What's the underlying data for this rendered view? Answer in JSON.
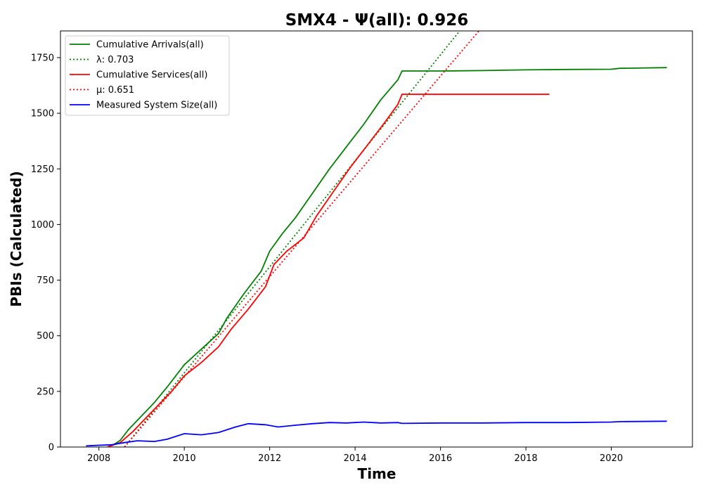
{
  "chart_data": {
    "type": "line",
    "title": "SMX4 -  Ψ(all): 0.926",
    "xlabel": "Time",
    "ylabel": "PBIs (Calculated)",
    "xlim": [
      2007.1,
      2021.9
    ],
    "ylim": [
      0,
      1870
    ],
    "xticks": [
      2008,
      2010,
      2012,
      2014,
      2016,
      2018,
      2020
    ],
    "yticks": [
      0,
      250,
      500,
      750,
      1000,
      1250,
      1500,
      1750
    ],
    "grid": false,
    "legend_position": "top-left",
    "series": [
      {
        "name": "Cumulative Arrivals(all)",
        "color": "#008000",
        "style": "solid",
        "x": [
          2008.3,
          2008.5,
          2008.7,
          2009.0,
          2009.3,
          2009.6,
          2010.0,
          2010.4,
          2010.8,
          2011.0,
          2011.4,
          2011.8,
          2012.0,
          2012.3,
          2012.6,
          2013.0,
          2013.4,
          2013.8,
          2014.2,
          2014.6,
          2015.0,
          2015.1,
          2016.0,
          2017.0,
          2018.0,
          2019.0,
          2020.0,
          2020.2,
          2021.3
        ],
        "y": [
          5,
          30,
          80,
          140,
          200,
          270,
          370,
          440,
          510,
          580,
          690,
          790,
          880,
          960,
          1030,
          1140,
          1250,
          1350,
          1450,
          1560,
          1650,
          1690,
          1690,
          1692,
          1695,
          1697,
          1698,
          1702,
          1705
        ]
      },
      {
        "name": "λ: 0.703",
        "color": "#008000",
        "style": "dotted",
        "x": [
          2008.6,
          2016.45
        ],
        "y": [
          0,
          1870
        ]
      },
      {
        "name": "Cumulative Services(all)",
        "color": "#ff0000",
        "style": "solid",
        "x": [
          2008.2,
          2008.5,
          2008.8,
          2009.1,
          2009.4,
          2009.7,
          2010.0,
          2010.4,
          2010.8,
          2011.1,
          2011.5,
          2011.9,
          2012.1,
          2012.4,
          2012.8,
          2013.1,
          2013.5,
          2013.9,
          2014.3,
          2014.7,
          2015.0,
          2015.1,
          2016.0,
          2017.0,
          2018.0,
          2018.55
        ],
        "y": [
          0,
          20,
          70,
          130,
          190,
          250,
          320,
          380,
          450,
          530,
          620,
          720,
          820,
          880,
          940,
          1040,
          1150,
          1260,
          1360,
          1460,
          1540,
          1585,
          1585,
          1585,
          1585,
          1585
        ]
      },
      {
        "name": "μ: 0.651",
        "color": "#ff0000",
        "style": "dotted",
        "x": [
          2008.6,
          2016.9
        ],
        "y": [
          0,
          1870
        ]
      },
      {
        "name": "Measured System Size(all)",
        "color": "#0000ff",
        "style": "solid",
        "x": [
          2007.7,
          2008.0,
          2008.3,
          2008.6,
          2008.9,
          2009.3,
          2009.6,
          2010.0,
          2010.4,
          2010.8,
          2011.2,
          2011.5,
          2011.9,
          2012.2,
          2012.6,
          2013.0,
          2013.4,
          2013.8,
          2014.2,
          2014.6,
          2015.0,
          2015.1,
          2016.0,
          2017.0,
          2018.0,
          2019.0,
          2020.0,
          2020.2,
          2021.3
        ],
        "y": [
          5,
          8,
          10,
          20,
          28,
          25,
          35,
          60,
          55,
          65,
          90,
          105,
          100,
          90,
          98,
          105,
          110,
          108,
          112,
          108,
          110,
          106,
          108,
          108,
          110,
          110,
          112,
          114,
          116
        ]
      }
    ]
  }
}
